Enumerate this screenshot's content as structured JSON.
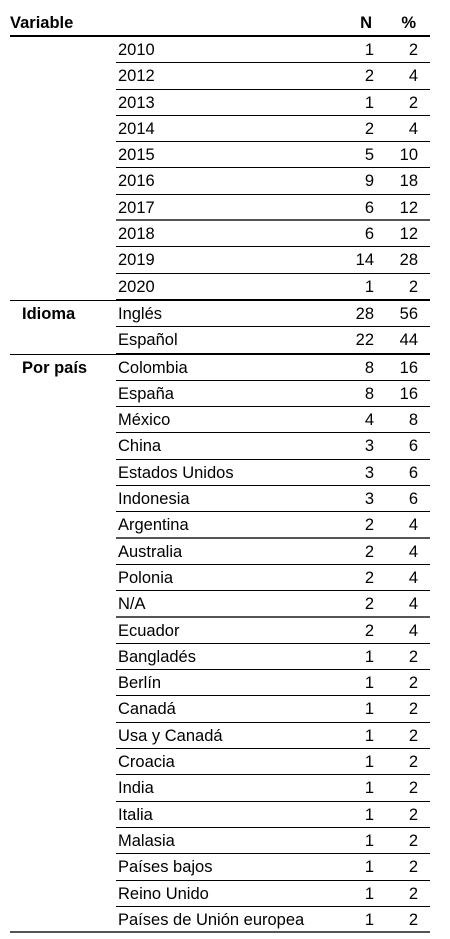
{
  "header": {
    "variable": "Variable",
    "n": "N",
    "pct": "%"
  },
  "groups": [
    {
      "name": "",
      "rows": [
        {
          "label": "2010",
          "n": "1",
          "pct": "2"
        },
        {
          "label": "2012",
          "n": "2",
          "pct": "4"
        },
        {
          "label": "2013",
          "n": "1",
          "pct": "2"
        },
        {
          "label": "2014",
          "n": "2",
          "pct": "4"
        },
        {
          "label": "2015",
          "n": "5",
          "pct": "10"
        },
        {
          "label": "2016",
          "n": "9",
          "pct": "18"
        },
        {
          "label": "2017",
          "n": "6",
          "pct": "12"
        },
        {
          "label": "2018",
          "n": "6",
          "pct": "12"
        },
        {
          "label": "2019",
          "n": "14",
          "pct": "28"
        },
        {
          "label": "2020",
          "n": "1",
          "pct": "2"
        }
      ]
    },
    {
      "name": "Idioma",
      "rows": [
        {
          "label": "Inglés",
          "n": "28",
          "pct": "56"
        },
        {
          "label": "Español",
          "n": "22",
          "pct": "44"
        }
      ]
    },
    {
      "name": "Por país",
      "rows": [
        {
          "label": "Colombia",
          "n": "8",
          "pct": "16"
        },
        {
          "label": "España",
          "n": "8",
          "pct": "16"
        },
        {
          "label": "México",
          "n": "4",
          "pct": "8"
        },
        {
          "label": "China",
          "n": "3",
          "pct": "6"
        },
        {
          "label": "Estados Unidos",
          "n": "3",
          "pct": "6"
        },
        {
          "label": "Indonesia",
          "n": "3",
          "pct": "6"
        },
        {
          "label": "Argentina",
          "n": "2",
          "pct": "4"
        },
        {
          "label": "Australia",
          "n": "2",
          "pct": "4"
        },
        {
          "label": "Polonia",
          "n": "2",
          "pct": "4"
        },
        {
          "label": "N/A",
          "n": "2",
          "pct": "4"
        },
        {
          "label": "Ecuador",
          "n": "2",
          "pct": "4"
        },
        {
          "label": "Bangladés",
          "n": "1",
          "pct": "2"
        },
        {
          "label": "Berlín",
          "n": "1",
          "pct": "2"
        },
        {
          "label": "Canadá",
          "n": "1",
          "pct": "2"
        },
        {
          "label": "Usa y Canadá",
          "n": "1",
          "pct": "2"
        },
        {
          "label": "Croacia",
          "n": "1",
          "pct": "2"
        },
        {
          "label": "India",
          "n": "1",
          "pct": "2"
        },
        {
          "label": "Italia",
          "n": "1",
          "pct": "2"
        },
        {
          "label": "Malasia",
          "n": "1",
          "pct": "2"
        },
        {
          "label": "Países bajos",
          "n": "1",
          "pct": "2"
        },
        {
          "label": "Reino Unido",
          "n": "1",
          "pct": "2"
        },
        {
          "label": "Países de Unión europea",
          "n": "1",
          "pct": "2"
        }
      ]
    }
  ]
}
